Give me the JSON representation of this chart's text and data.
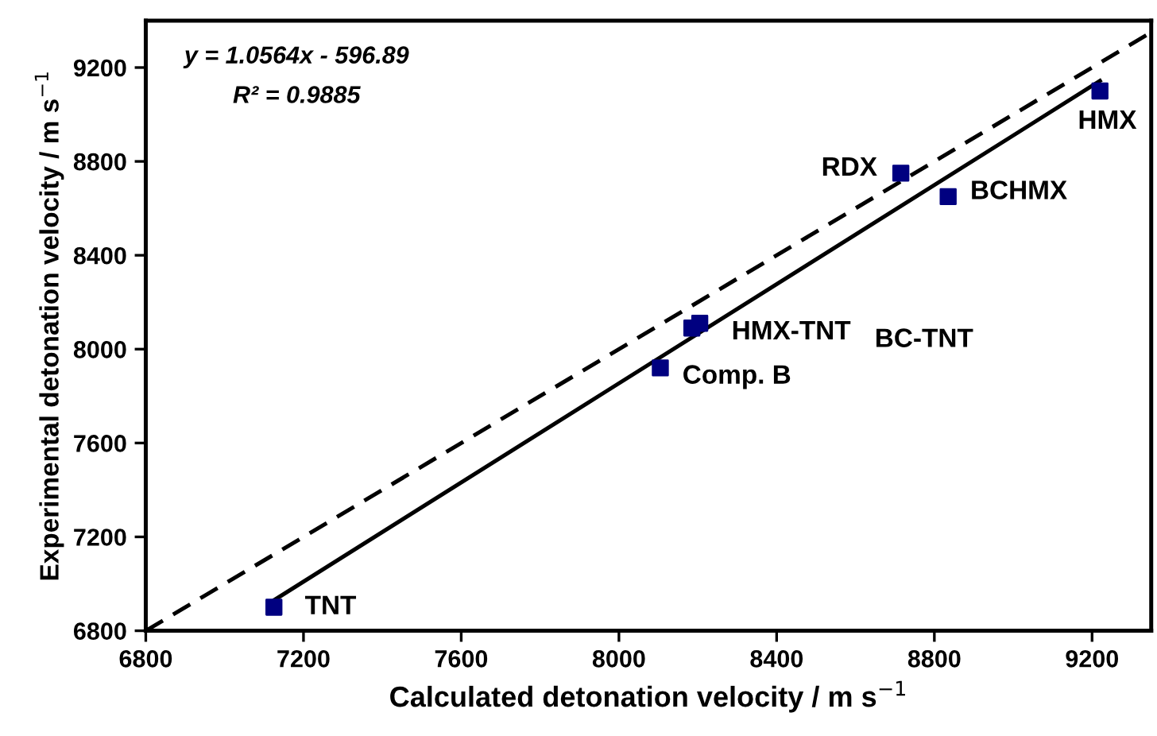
{
  "chart_data": {
    "type": "scatter",
    "xlabel": "Calculated detonation velocity / m s$^{−1}$",
    "ylabel": "Experimental detonation velocity / m s$^{−1}$",
    "xlim": [
      6800,
      9350
    ],
    "ylim": [
      6800,
      9400
    ],
    "xticks": [
      6800,
      7200,
      7600,
      8000,
      8400,
      8800,
      9200
    ],
    "yticks": [
      6800,
      7200,
      7600,
      8000,
      8400,
      8800,
      9200
    ],
    "grid": false,
    "series": [
      {
        "marker": "square",
        "color": "#000080",
        "x": [
          7125,
          8105,
          8185,
          8205,
          8715,
          8835,
          9220
        ],
        "values": [
          6900,
          7920,
          8090,
          8110,
          8750,
          8650,
          9100
        ]
      },
      {
        "type": "line",
        "marker": "none",
        "line_style": "solid",
        "color": "#000000",
        "x": [
          7125,
          9220
        ],
        "values": [
          6930,
          9143
        ]
      },
      {
        "type": "line",
        "marker": "none",
        "line_style": "dashed",
        "color": "#000000",
        "x": [
          6800,
          9350
        ],
        "values": [
          6800,
          9350
        ]
      }
    ],
    "annotations": [
      {
        "text": "TNT",
        "x": 7125,
        "y": 6900
      },
      {
        "text": "Comp. B",
        "x": 8105,
        "y": 7920
      },
      {
        "text": "HMX-TNT",
        "x": 8185,
        "y": 8090
      },
      "BC-TNT",
      {
        "text": "RDX",
        "x": 8715,
        "y": 8750
      },
      {
        "text": "BCHMX",
        "x": 8835,
        "y": 8650
      },
      {
        "text": "HMX",
        "x": 9220,
        "y": 9100
      },
      "y = 1.0564x - 596.89",
      "R² = 0.9885"
    ]
  }
}
